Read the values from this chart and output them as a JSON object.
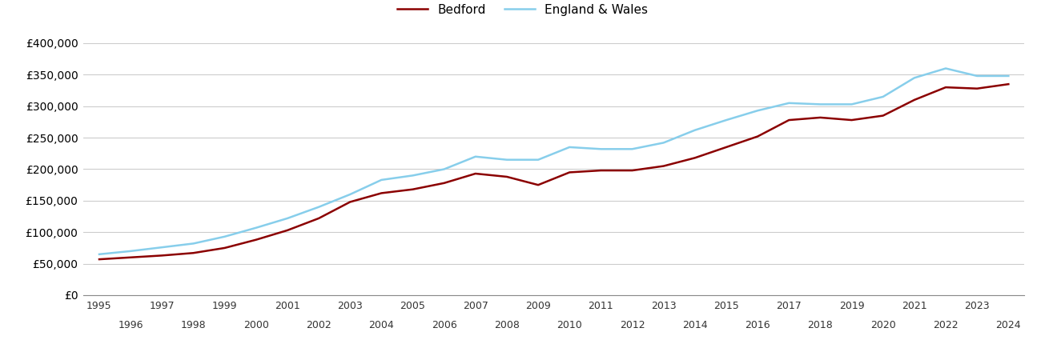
{
  "bedford": {
    "years": [
      1995,
      1996,
      1997,
      1998,
      1999,
      2000,
      2001,
      2002,
      2003,
      2004,
      2005,
      2006,
      2007,
      2008,
      2009,
      2010,
      2011,
      2012,
      2013,
      2014,
      2015,
      2016,
      2017,
      2018,
      2019,
      2020,
      2021,
      2022,
      2023,
      2024
    ],
    "values": [
      57000,
      60000,
      63000,
      67000,
      75000,
      88000,
      103000,
      122000,
      148000,
      162000,
      168000,
      178000,
      193000,
      188000,
      175000,
      195000,
      198000,
      198000,
      205000,
      218000,
      235000,
      252000,
      278000,
      282000,
      278000,
      285000,
      310000,
      330000,
      328000,
      335000
    ]
  },
  "england_wales": {
    "years": [
      1995,
      1996,
      1997,
      1998,
      1999,
      2000,
      2001,
      2002,
      2003,
      2004,
      2005,
      2006,
      2007,
      2008,
      2009,
      2010,
      2011,
      2012,
      2013,
      2014,
      2015,
      2016,
      2017,
      2018,
      2019,
      2020,
      2021,
      2022,
      2023,
      2024
    ],
    "values": [
      65000,
      70000,
      76000,
      82000,
      93000,
      107000,
      122000,
      140000,
      160000,
      183000,
      190000,
      200000,
      220000,
      215000,
      215000,
      235000,
      232000,
      232000,
      242000,
      262000,
      278000,
      293000,
      305000,
      303000,
      303000,
      315000,
      345000,
      360000,
      348000,
      348000
    ]
  },
  "bedford_color": "#8B0000",
  "england_wales_color": "#87CEEB",
  "background_color": "#ffffff",
  "grid_color": "#cccccc",
  "ylim": [
    0,
    400000
  ],
  "yticks": [
    0,
    50000,
    100000,
    150000,
    200000,
    250000,
    300000,
    350000,
    400000
  ],
  "legend_bedford": "Bedford",
  "legend_ew": "England & Wales",
  "line_width": 1.8
}
